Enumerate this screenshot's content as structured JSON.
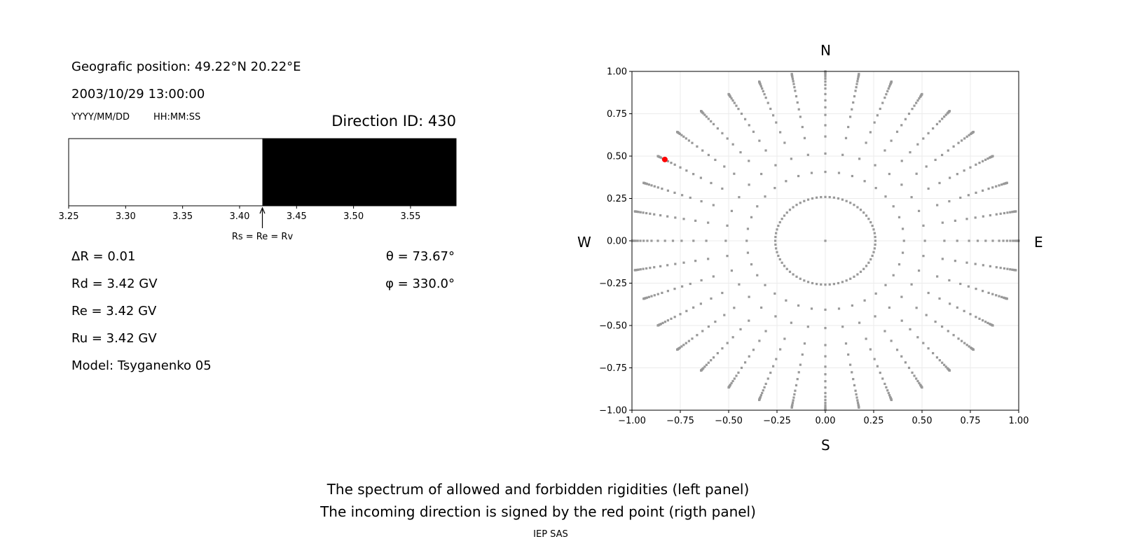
{
  "left_panel": {
    "geo_position": "Geografic position: 49.22°N 20.22°E",
    "datetime": "2003/10/29 13:00:00",
    "date_format": "YYYY/MM/DD",
    "time_format": "HH:MM:SS",
    "direction_id": "Direction ID: 430",
    "delta_r": "ΔR = 0.01",
    "rd": "Rd = 3.42 GV",
    "re": "Re = 3.42 GV",
    "ru": "Ru = 3.42 GV",
    "model": "Model: Tsyganenko 05",
    "theta": "θ = 73.67°",
    "phi": "φ = 330.0°"
  },
  "compass": {
    "n": "N",
    "s": "S",
    "w": "W",
    "e": "E"
  },
  "caption": {
    "line1": "The spectrum of allowed and forbidden rigidities (left panel)",
    "line2": "The incoming direction is signed by the red point (rigth panel)",
    "credit": "IEP SAS"
  },
  "chart_data": [
    {
      "type": "bar",
      "xlim": [
        3.25,
        3.59
      ],
      "xticks": [
        "3.25",
        "3.30",
        "3.35",
        "3.40",
        "3.45",
        "3.50",
        "3.55"
      ],
      "segments": [
        {
          "from": 3.25,
          "to": 3.42,
          "state": "allowed",
          "color": "#ffffff"
        },
        {
          "from": 3.42,
          "to": 3.59,
          "state": "forbidden",
          "color": "#000000"
        }
      ],
      "annotation": {
        "x": 3.42,
        "text": "Rs = Re = Rv"
      }
    },
    {
      "type": "scatter",
      "xlim": [
        -1,
        1
      ],
      "ylim": [
        -1,
        1
      ],
      "xticks": [
        "−1.00",
        "−0.75",
        "−0.50",
        "−0.25",
        "0.00",
        "0.25",
        "0.50",
        "0.75",
        "1.00"
      ],
      "yticks": [
        "−1.00",
        "−0.75",
        "−0.50",
        "−0.25",
        "0.00",
        "0.25",
        "0.50",
        "0.75",
        "1.00"
      ],
      "grid": true,
      "point_color": "#999999",
      "highlight_color": "#ff0000",
      "center_point": {
        "x": 0,
        "y": 0
      },
      "inner_ring": {
        "zenith_deg": 15,
        "azimuth_step_deg": 5
      },
      "spokes": {
        "azimuth_step_deg": 10,
        "zenith_deg": [
          24,
          31,
          38,
          43,
          48,
          52,
          56,
          60,
          64,
          67,
          70,
          73,
          76,
          79,
          81,
          83,
          85,
          87,
          89
        ]
      },
      "highlight": {
        "x": -0.83,
        "y": 0.48
      }
    }
  ]
}
